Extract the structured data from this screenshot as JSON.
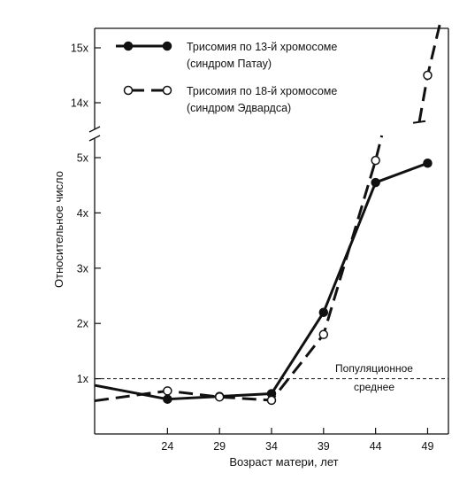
{
  "chart_data": {
    "type": "line",
    "xlabel": "Возраст матери, лет",
    "ylabel": "Относительное число",
    "x_ticks": [
      24,
      29,
      34,
      39,
      44,
      49
    ],
    "y_ticks_lower": [
      "1x",
      "2x",
      "3x",
      "4x",
      "5x"
    ],
    "y_ticks_upper": [
      "14x",
      "15x"
    ],
    "y_axis_break": true,
    "xlim": [
      17,
      51
    ],
    "ylim_lower": [
      0,
      5.5
    ],
    "ylim_upper": [
      13.5,
      15.5
    ],
    "grid": false,
    "reference_line": {
      "value": 1,
      "label_line1": "Популяционное",
      "label_line2": "среднее"
    },
    "legend": {
      "placement": "top-left",
      "entries": [
        {
          "line1": "Трисомия по 13-й хромосоме",
          "line2": "(синдром Патау)",
          "style": "solid-filled"
        },
        {
          "line1": "Трисомия по 18-й хромосоме",
          "line2": "(синдром Эдвардса)",
          "style": "dashed-open"
        }
      ]
    },
    "series": [
      {
        "name": "Трисомия по 13-й хромосоме (синдром Патау)",
        "style": "solid-filled",
        "line_x": [
          17,
          24,
          29,
          34,
          39,
          44,
          49
        ],
        "line_y": [
          0.88,
          0.63,
          0.68,
          0.73,
          2.2,
          4.55,
          4.9
        ],
        "marker_x": [
          24,
          29,
          34,
          39,
          44,
          49
        ],
        "marker_y": [
          0.63,
          0.68,
          0.73,
          2.2,
          4.55,
          4.9
        ]
      },
      {
        "name": "Трисомия по 18-й хромосоме (синдром Эдвардса)",
        "style": "dashed-open",
        "line_x": [
          17,
          24,
          29,
          34,
          39,
          44,
          44.6
        ],
        "line_y": [
          0.6,
          0.78,
          0.67,
          0.61,
          1.8,
          4.95,
          5.4
        ],
        "marker_x": [
          24,
          29,
          34,
          39,
          44
        ],
        "marker_y": [
          0.78,
          0.67,
          0.61,
          1.8,
          4.95
        ],
        "upper_segment_x": [
          48.2,
          49,
          50.2
        ],
        "upper_segment_y": [
          13.65,
          14.5,
          15.45
        ],
        "upper_marker_x": [
          49
        ],
        "upper_marker_y": [
          14.5
        ]
      }
    ]
  }
}
